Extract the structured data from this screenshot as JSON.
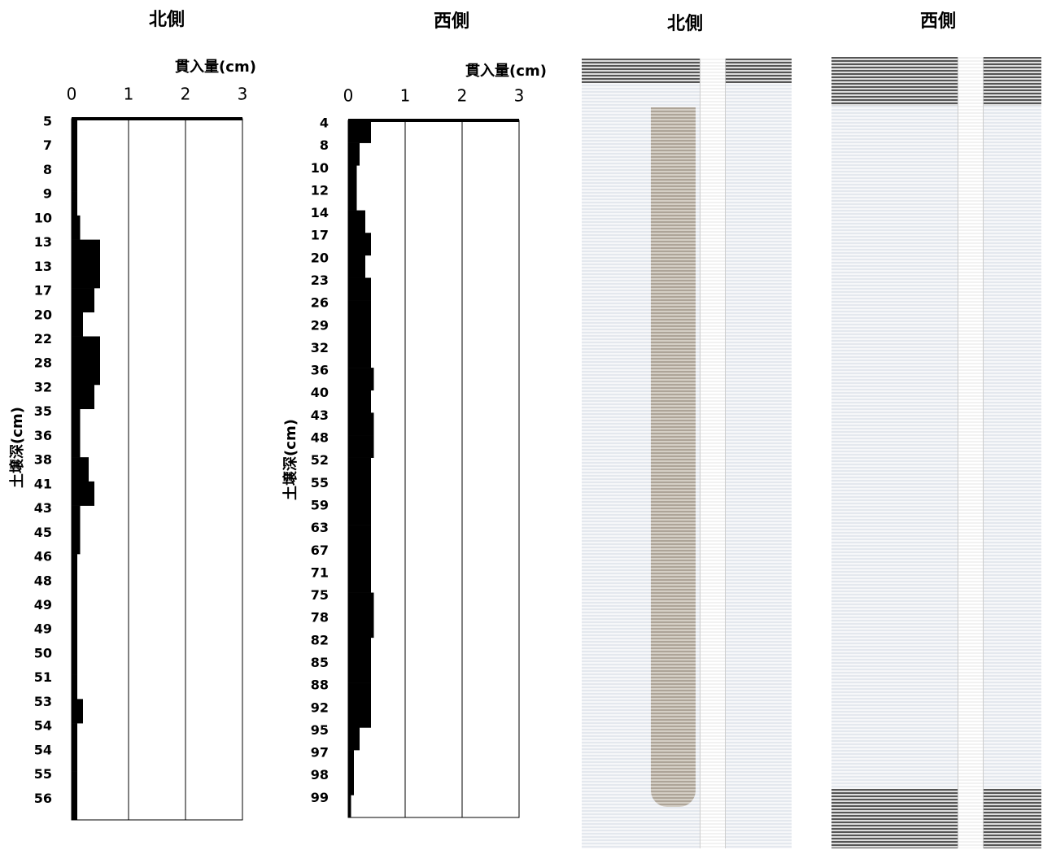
{
  "chart_data": [
    {
      "type": "bar",
      "orientation": "horizontal",
      "title": "北側",
      "xlabel": "貫入量(cm)",
      "ylabel": "土壌深(cm)",
      "categories": [
        "5",
        "7",
        "8",
        "9",
        "10",
        "13",
        "13",
        "17",
        "20",
        "22",
        "28",
        "32",
        "35",
        "36",
        "38",
        "41",
        "43",
        "45",
        "46",
        "48",
        "49",
        "49",
        "50",
        "51",
        "53",
        "54",
        "54",
        "55",
        "56"
      ],
      "values": [
        0.1,
        0.1,
        0.1,
        0.1,
        0.15,
        0.5,
        0.5,
        0.4,
        0.2,
        0.5,
        0.5,
        0.4,
        0.15,
        0.15,
        0.3,
        0.4,
        0.15,
        0.15,
        0.1,
        0.1,
        0.1,
        0.1,
        0.1,
        0.1,
        0.2,
        0.1,
        0.1,
        0.1,
        0.1
      ],
      "color": "#000000",
      "xlim": [
        0,
        3
      ],
      "xticks": [
        0,
        1,
        2,
        3
      ],
      "grid": true
    },
    {
      "type": "bar",
      "orientation": "horizontal",
      "title": "西側",
      "xlabel": "貫入量(cm)",
      "ylabel": "土壌深(cm)",
      "categories": [
        "4",
        "8",
        "10",
        "12",
        "14",
        "17",
        "20",
        "23",
        "26",
        "29",
        "32",
        "36",
        "40",
        "43",
        "48",
        "52",
        "55",
        "59",
        "63",
        "67",
        "71",
        "75",
        "78",
        "82",
        "85",
        "88",
        "92",
        "95",
        "97",
        "98",
        "99"
      ],
      "values": [
        0.4,
        0.2,
        0.15,
        0.15,
        0.3,
        0.4,
        0.3,
        0.4,
        0.4,
        0.4,
        0.4,
        0.45,
        0.4,
        0.45,
        0.45,
        0.4,
        0.4,
        0.4,
        0.4,
        0.4,
        0.4,
        0.45,
        0.45,
        0.4,
        0.4,
        0.4,
        0.4,
        0.2,
        0.1,
        0.1,
        0.05
      ],
      "color": "#000000",
      "xlim": [
        0,
        3
      ],
      "xticks": [
        0,
        1,
        2,
        3
      ],
      "grid": true
    }
  ],
  "photos": [
    {
      "title": "北側"
    },
    {
      "title": "西側"
    }
  ]
}
